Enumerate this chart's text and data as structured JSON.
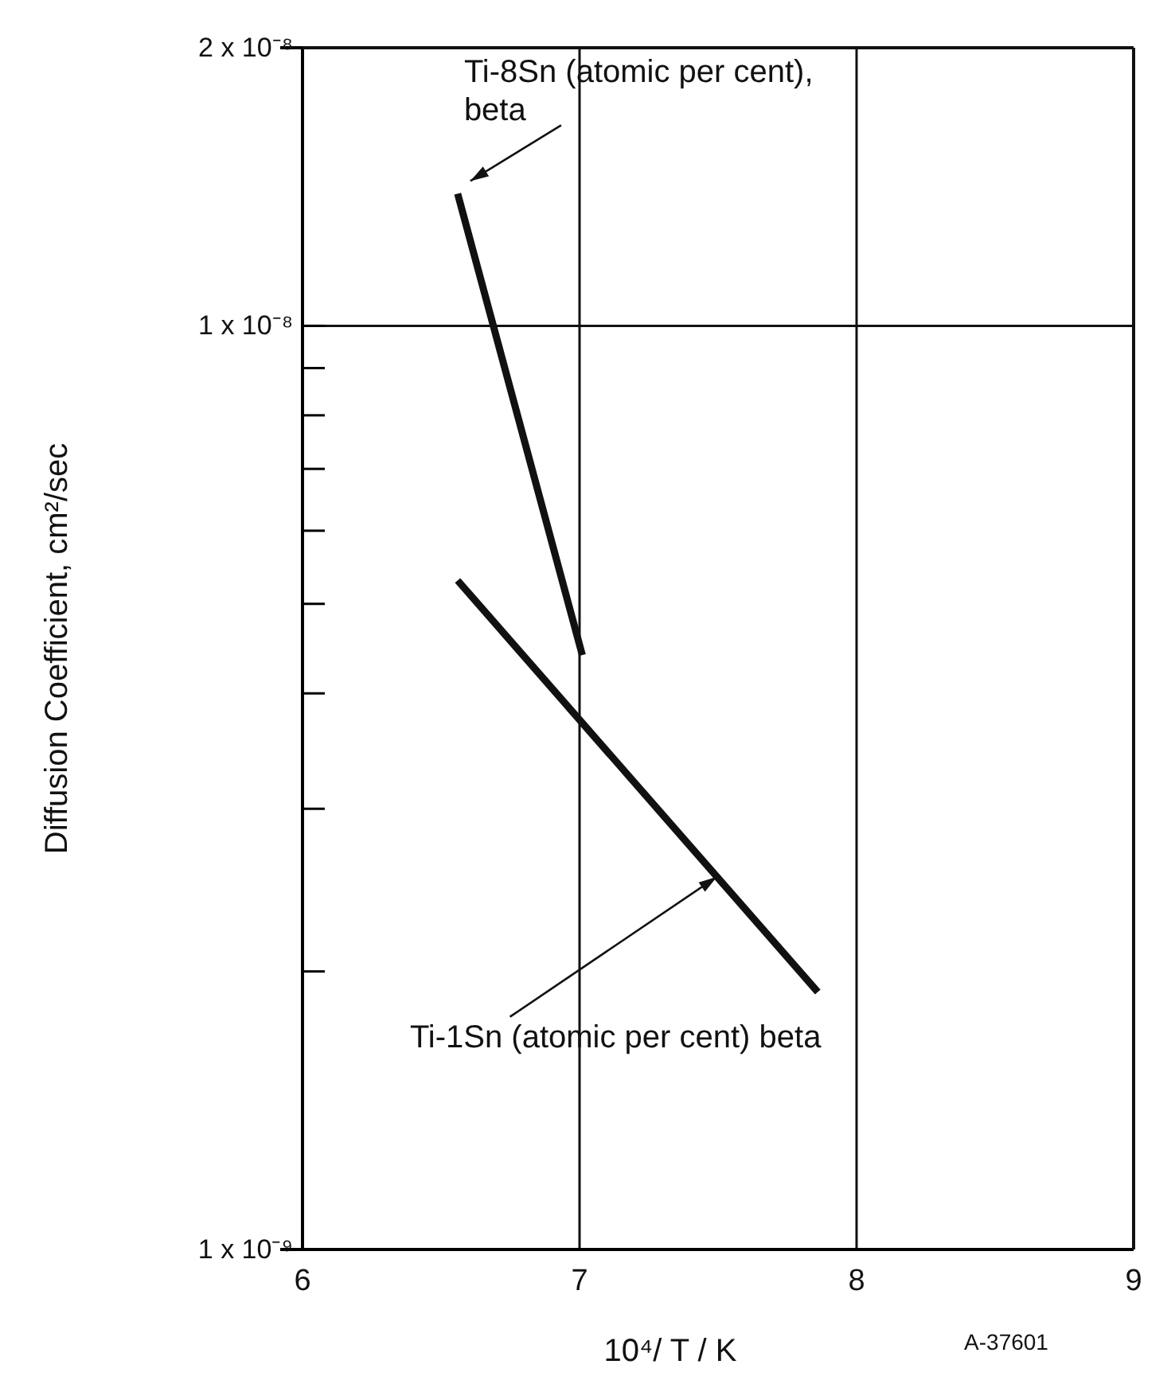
{
  "chart_data": {
    "type": "line",
    "xlabel": "10⁴/ T / K",
    "ylabel": "Diffusion Coefficient, cm²/sec",
    "log": "y",
    "grid": true,
    "marker": "none",
    "line_style": "solid",
    "xlim": [
      6,
      9
    ],
    "xticks": [
      6,
      7,
      8,
      9
    ],
    "ylim": [
      1e-09,
      2e-08
    ],
    "yticks": [
      {
        "value": 1e-09,
        "label": "1 x 10⁻⁹"
      },
      {
        "value": 2e-09,
        "label": null
      },
      {
        "value": 3e-09,
        "label": null
      },
      {
        "value": 4e-09,
        "label": null
      },
      {
        "value": 5e-09,
        "label": null
      },
      {
        "value": 6e-09,
        "label": null
      },
      {
        "value": 7e-09,
        "label": null
      },
      {
        "value": 8e-09,
        "label": null
      },
      {
        "value": 9e-09,
        "label": null
      },
      {
        "value": 1e-08,
        "label": "1 x 10⁻⁸"
      },
      {
        "value": 2e-08,
        "label": "2 x 10⁻⁸"
      }
    ],
    "series": [
      {
        "name": "Ti-8Sn (atomic per cent), beta",
        "color": "#111111",
        "x": [
          6.56,
          7.01
        ],
        "values": [
          1.39e-08,
          4.4e-09
        ]
      },
      {
        "name": "Ti-1Sn (atomic per cent) beta",
        "color": "#111111",
        "x": [
          6.56,
          7.86
        ],
        "values": [
          5.3e-09,
          1.9e-09
        ]
      }
    ],
    "annotations": [
      "A-37601"
    ]
  }
}
